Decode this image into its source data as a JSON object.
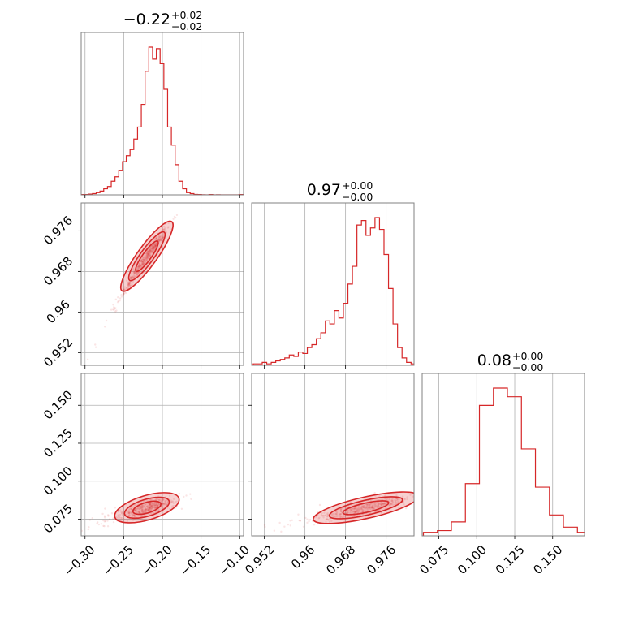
{
  "chart_data": {
    "type": "corner",
    "color": "#d62728",
    "grid": true,
    "panels": [
      {
        "id": "hist-p1",
        "kind": "hist",
        "title": {
          "main": "−0.22",
          "sup": "+0.02",
          "sub": "−0.02"
        },
        "xlim": [
          -0.305,
          -0.095
        ],
        "bin_edges": [
          -0.305,
          -0.096
        ],
        "counts": [
          0.2,
          0.2,
          0.5,
          0.8,
          1.5,
          2.5,
          4,
          5.5,
          9,
          12,
          16,
          22,
          26,
          30,
          37,
          45,
          60,
          82,
          98,
          90,
          97,
          87,
          70,
          45,
          33,
          20,
          9,
          4,
          1.5,
          0.8,
          0.3,
          0.2,
          0.1,
          0,
          0.2,
          0,
          0.1,
          0,
          0,
          0,
          0,
          0,
          0.2
        ],
        "xticks": [
          -0.3,
          -0.25,
          -0.2,
          -0.15,
          -0.1
        ]
      },
      {
        "id": "hist-p2",
        "kind": "hist",
        "title": {
          "main": "0.97",
          "sup": "+0.00",
          "sub": "−0.00"
        },
        "xlim": [
          0.9495,
          0.9815
        ],
        "bin_edges": [
          0.9498,
          0.9818
        ],
        "counts": [
          1,
          1,
          2,
          1,
          2,
          3,
          4,
          5,
          7,
          6,
          9,
          8,
          12,
          14,
          18,
          22,
          30,
          28,
          37,
          32,
          42,
          55,
          67,
          95,
          98,
          88,
          93,
          100,
          92,
          75,
          52,
          28,
          12,
          5,
          2,
          1
        ],
        "xticks": [
          0.952,
          0.96,
          0.968,
          0.976
        ]
      },
      {
        "id": "hist-p3",
        "kind": "hist",
        "title": {
          "main": "0.08",
          "sup": "+0.00",
          "sub": "−0.00"
        },
        "xlim": [
          0.064,
          0.171
        ],
        "bin_edges": [
          0.0648,
          0.1848
        ],
        "counts": [
          2,
          3,
          8,
          30,
          75,
          85,
          80,
          50,
          28,
          12,
          5,
          2,
          1
        ],
        "xticks": [
          0.075,
          0.1,
          0.125,
          0.15
        ],
        "xticklabels": [
          "0.075",
          "0.100",
          "0.125",
          "0.150"
        ]
      },
      {
        "id": "joint-p1-p2",
        "kind": "joint",
        "xlim": [
          -0.305,
          -0.095
        ],
        "ylim": [
          0.9495,
          0.9815
        ],
        "yticks": [
          0.952,
          0.96,
          0.968,
          0.976
        ],
        "relation": {
          "x0": -0.22,
          "y0": 0.971,
          "slope": 0.22,
          "curve": -0.6
        },
        "sigma_x": 0.014,
        "scatter_spread": 0.0006,
        "contours": [
          1.0,
          1.6,
          2.3
        ]
      },
      {
        "id": "joint-p1-p3",
        "kind": "joint",
        "xlim": [
          -0.305,
          -0.095
        ],
        "ylim": [
          0.064,
          0.171
        ],
        "yticks": [
          0.075,
          0.1,
          0.125,
          0.15
        ],
        "yticklabels": [
          "0.075",
          "0.100",
          "0.125",
          "0.150"
        ],
        "xticks": [
          -0.3,
          -0.25,
          -0.2,
          -0.15,
          -0.1
        ],
        "relation": {
          "x0": -0.22,
          "y0": 0.0825,
          "slope": 0.15,
          "curve": 0
        },
        "sigma_x": 0.018,
        "scatter_spread": 0.0025,
        "contours": [
          1.0,
          1.6,
          2.3
        ]
      },
      {
        "id": "joint-p2-p3",
        "kind": "joint",
        "xlim": [
          0.9495,
          0.9815
        ],
        "ylim": [
          0.064,
          0.171
        ],
        "xticks": [
          0.952,
          0.96,
          0.968,
          0.976
        ],
        "relation": {
          "x0": 0.972,
          "y0": 0.0825,
          "slope": 0.75,
          "curve": 0
        },
        "sigma_x": 0.0045,
        "scatter_spread": 0.0022,
        "contours": [
          1.0,
          1.6,
          2.3
        ]
      }
    ]
  }
}
